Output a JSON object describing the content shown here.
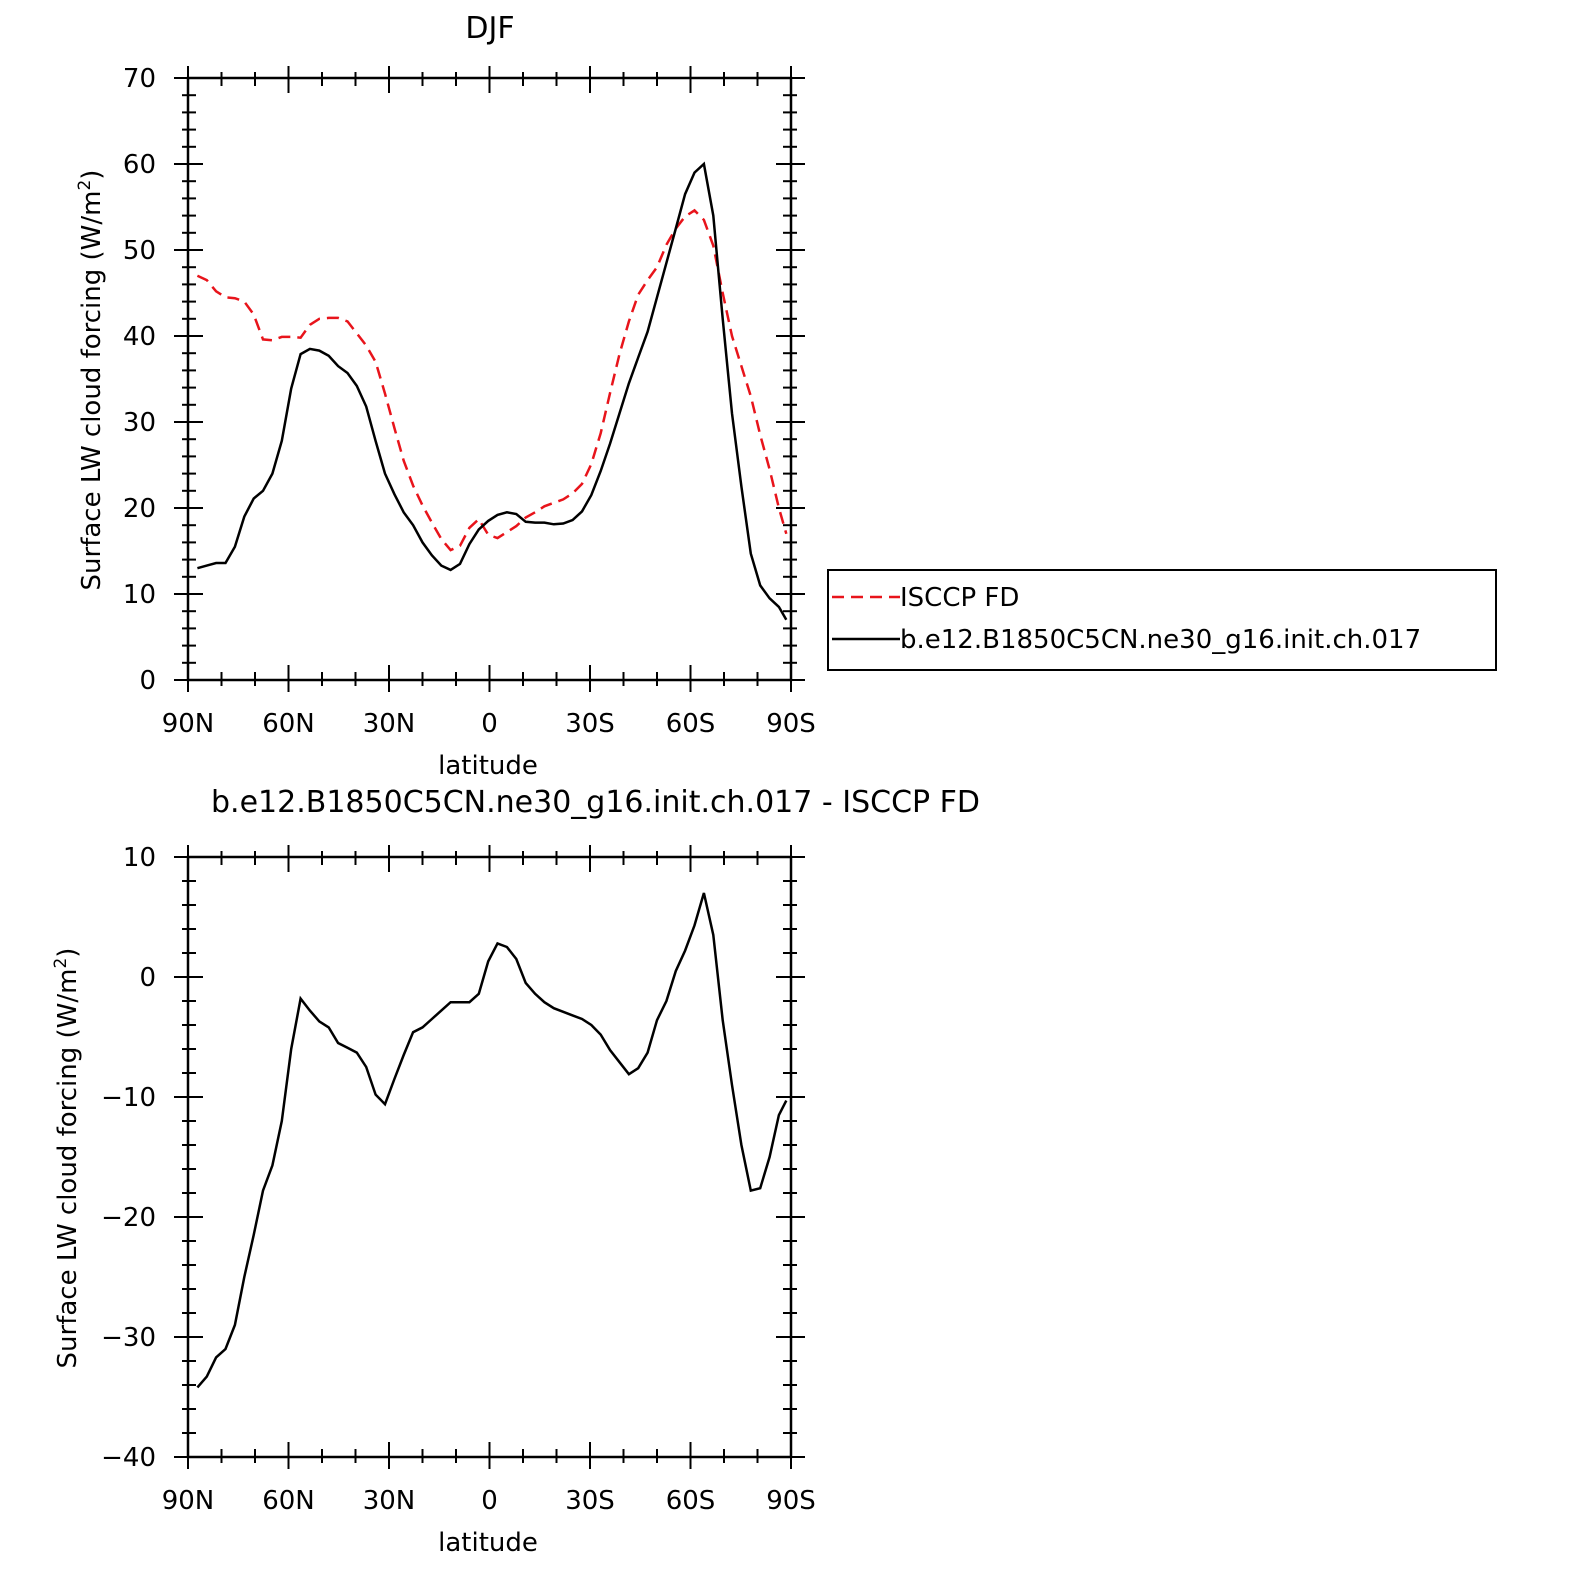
{
  "chart_data": [
    {
      "type": "line",
      "title": "DJF",
      "xlabel": "latitude",
      "ylabel": "Surface LW cloud forcing (W/m",
      "ylabel_sup": "2",
      "ylabel_close": ")",
      "xlim": [
        -90,
        90
      ],
      "ylim": [
        0,
        70
      ],
      "x_ticks": [
        -90,
        -60,
        -30,
        0,
        30,
        60,
        90
      ],
      "x_tick_labels": [
        "90N",
        "60N",
        "30N",
        "0",
        "30S",
        "60S",
        "90S"
      ],
      "y_ticks": [
        0,
        10,
        20,
        30,
        40,
        50,
        60,
        70
      ],
      "y_tick_labels": [
        "0",
        "10",
        "20",
        "30",
        "40",
        "50",
        "60",
        "70"
      ],
      "legend_position": "right",
      "series": [
        {
          "name": "ISCCP FD",
          "color": "#e8141b",
          "dash": "dashed",
          "x": [
            -87.2,
            -84.4,
            -81.6,
            -78.8,
            -76,
            -73.2,
            -70.4,
            -67.6,
            -64.8,
            -62,
            -59.2,
            -56.4,
            -53.6,
            -50.8,
            -48,
            -45.2,
            -42.4,
            -39.6,
            -36.8,
            -34,
            -31.2,
            -28.4,
            -25.6,
            -22.8,
            -20,
            -17.2,
            -14.4,
            -11.6,
            -8.8,
            -6,
            -3.2,
            -0.4,
            2.4,
            5.2,
            8,
            10.8,
            13.6,
            16.4,
            19.2,
            22,
            24.8,
            27.6,
            30.4,
            33.2,
            36,
            38.8,
            41.6,
            44.4,
            47.2,
            50,
            52.8,
            55.6,
            58.4,
            61.2,
            64,
            66.8,
            69.6,
            72.4,
            75.2,
            78,
            80.8,
            83.6,
            86.4,
            88.6
          ],
          "y": [
            47,
            46.5,
            45.2,
            44.5,
            44.4,
            44,
            42.5,
            39.6,
            39.5,
            39.9,
            39.9,
            39.8,
            41.3,
            42,
            42.1,
            42.1,
            41.7,
            40.3,
            38.9,
            37,
            33.3,
            29.3,
            25.5,
            22.6,
            20.3,
            18.3,
            16.4,
            15.1,
            15.6,
            17.7,
            18.7,
            16.9,
            16.5,
            17.2,
            17.9,
            18.9,
            19.5,
            20.2,
            20.6,
            21,
            21.7,
            22.8,
            25.1,
            28.7,
            33.4,
            37.9,
            41.7,
            44.8,
            46.5,
            48,
            50.6,
            52.5,
            53.9,
            54.6,
            53.5,
            50.5,
            45,
            40,
            36.5,
            33,
            28.5,
            24.5,
            20,
            17
          ]
        },
        {
          "name": "b.e12.B1850C5CN.ne30_g16.init.ch.017",
          "color": "#000000",
          "dash": "solid",
          "x": [
            -87.2,
            -84.4,
            -81.6,
            -78.8,
            -76,
            -73.2,
            -70.4,
            -67.6,
            -64.8,
            -62,
            -59.2,
            -56.4,
            -53.6,
            -50.8,
            -48,
            -45.2,
            -42.4,
            -39.6,
            -36.8,
            -34,
            -31.2,
            -28.4,
            -25.6,
            -22.8,
            -20,
            -17.2,
            -14.4,
            -11.6,
            -8.8,
            -6,
            -3.2,
            -0.4,
            2.4,
            5.2,
            8,
            10.8,
            13.6,
            16.4,
            19.2,
            22,
            24.8,
            27.6,
            30.4,
            33.2,
            36,
            38.8,
            41.6,
            44.4,
            47.2,
            50,
            52.8,
            55.6,
            58.4,
            61.2,
            64,
            66.8,
            69.6,
            72.4,
            75.2,
            78,
            80.8,
            83.6,
            86.4,
            88.6
          ],
          "y": [
            13,
            13.3,
            13.6,
            13.6,
            15.5,
            19,
            21.1,
            22,
            24,
            27.8,
            33.9,
            37.9,
            38.5,
            38.3,
            37.7,
            36.5,
            35.7,
            34.2,
            31.8,
            27.8,
            24,
            21.6,
            19.5,
            18,
            16,
            14.5,
            13.3,
            12.8,
            13.5,
            15.8,
            17.5,
            18.5,
            19.2,
            19.5,
            19.3,
            18.4,
            18.3,
            18.3,
            18.1,
            18.2,
            18.6,
            19.6,
            21.5,
            24.3,
            27.5,
            31,
            34.5,
            37.5,
            40.5,
            44.5,
            48.5,
            52.5,
            56.5,
            59,
            60,
            54,
            42,
            31,
            22.5,
            14.7,
            11,
            9.5,
            8.5,
            7
          ]
        }
      ]
    },
    {
      "type": "line",
      "title": "b.e12.B1850C5CN.ne30_g16.init.ch.017 - ISCCP FD",
      "xlabel": "latitude",
      "ylabel": "Surface LW cloud forcing (W/m",
      "ylabel_sup": "2",
      "ylabel_close": ")",
      "xlim": [
        -90,
        90
      ],
      "ylim": [
        -40,
        10
      ],
      "x_ticks": [
        -90,
        -60,
        -30,
        0,
        30,
        60,
        90
      ],
      "x_tick_labels": [
        "90N",
        "60N",
        "30N",
        "0",
        "30S",
        "60S",
        "90S"
      ],
      "y_ticks": [
        -40,
        -30,
        -20,
        -10,
        0,
        10
      ],
      "y_tick_labels": [
        "−40",
        "−30",
        "−20",
        "−10",
        "0",
        "10"
      ],
      "series": [
        {
          "color": "#000000",
          "dash": "solid",
          "x": [
            -87.2,
            -84.4,
            -81.6,
            -78.8,
            -76,
            -73.2,
            -70.4,
            -67.6,
            -64.8,
            -62,
            -59.2,
            -56.4,
            -53.6,
            -50.8,
            -48,
            -45.2,
            -42.4,
            -39.6,
            -36.8,
            -34,
            -31.2,
            -28.4,
            -25.6,
            -22.8,
            -20,
            -17.2,
            -14.4,
            -11.6,
            -8.8,
            -6,
            -3.2,
            -0.4,
            2.4,
            5.2,
            8,
            10.8,
            13.6,
            16.4,
            19.2,
            22,
            24.8,
            27.6,
            30.4,
            33.2,
            36,
            38.8,
            41.6,
            44.4,
            47.2,
            50,
            52.8,
            55.6,
            58.4,
            61.2,
            64,
            66.8,
            69.6,
            72.4,
            75.2,
            78,
            80.8,
            83.6,
            86.4,
            88.6
          ],
          "y": [
            -34.2,
            -33.3,
            -31.7,
            -31,
            -29,
            -25,
            -21.5,
            -17.8,
            -15.7,
            -12,
            -6,
            -1.8,
            -2.8,
            -3.7,
            -4.2,
            -5.5,
            -5.9,
            -6.3,
            -7.5,
            -9.8,
            -10.6,
            -8.5,
            -6.5,
            -4.6,
            -4.2,
            -3.5,
            -2.8,
            -2.1,
            -2.1,
            -2.1,
            -1.4,
            1.3,
            2.8,
            2.5,
            1.5,
            -0.5,
            -1.4,
            -2.1,
            -2.6,
            -2.9,
            -3.2,
            -3.5,
            -4,
            -4.8,
            -6.1,
            -7.1,
            -8.1,
            -7.6,
            -6.3,
            -3.6,
            -2,
            0.5,
            2.2,
            4.3,
            7,
            3.5,
            -3.6,
            -9,
            -14,
            -17.8,
            -17.6,
            -15,
            -11.5,
            -10.3
          ]
        }
      ]
    }
  ]
}
